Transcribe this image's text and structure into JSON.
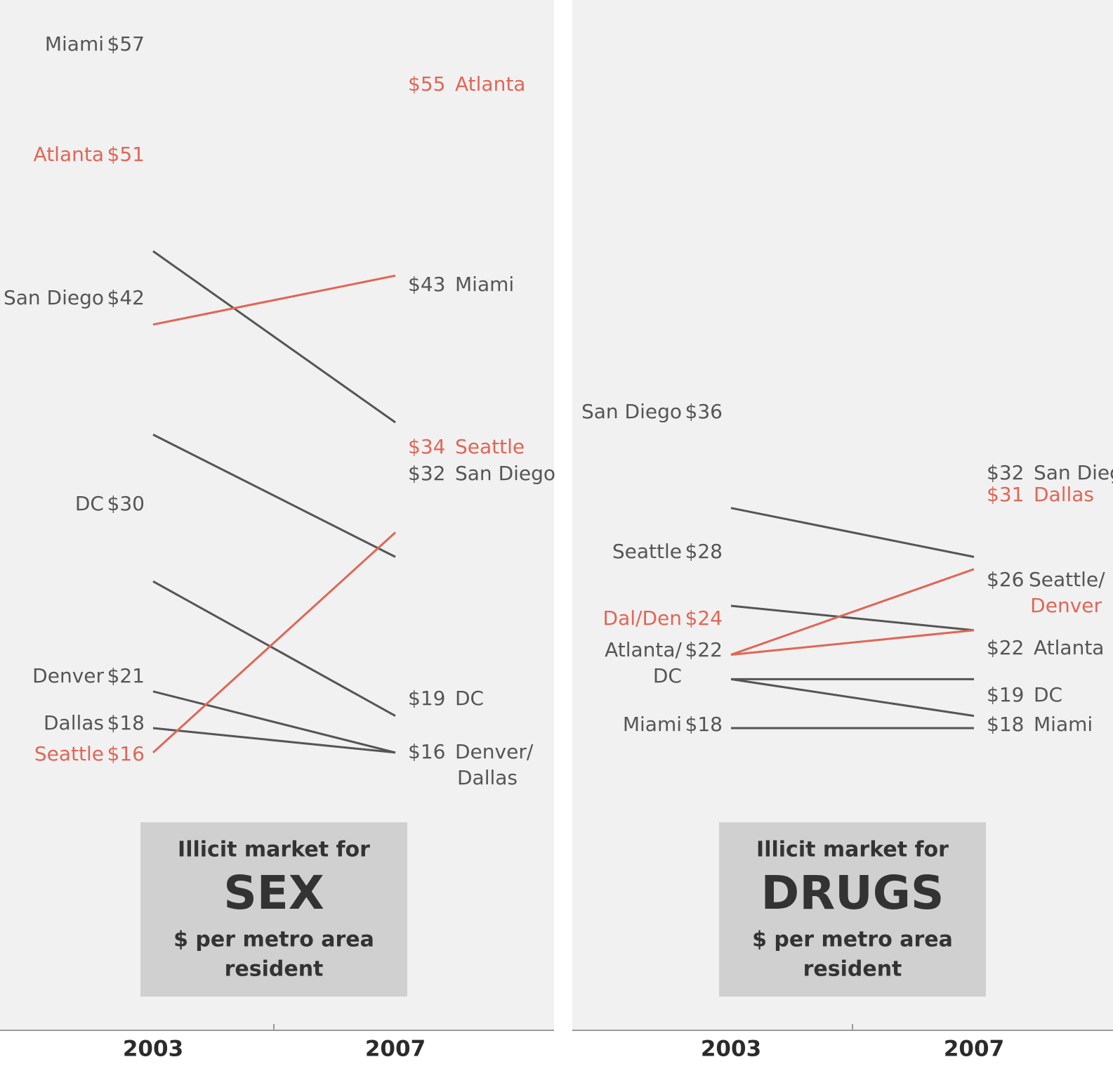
{
  "colors": {
    "panel_background": "#f1f1f1",
    "neutral": "#555555",
    "highlight": "#e06656",
    "box_background": "#d0d0d0",
    "box_text": "#333333",
    "axis": "#9a9a9a"
  },
  "chart_data": [
    {
      "type": "line",
      "variant": "slopegraph",
      "x": [
        "2003",
        "2007"
      ],
      "unit": "$ per metro area resident",
      "title_box": {
        "line1": "Illicit market for",
        "big": "SEX",
        "line2": "$ per metro area",
        "line3": "resident"
      },
      "ylim": [
        13,
        59
      ],
      "series": [
        {
          "name": "Miami",
          "values": [
            57,
            43
          ],
          "highlight": false
        },
        {
          "name": "Atlanta",
          "values": [
            51,
            55
          ],
          "highlight": true
        },
        {
          "name": "San Diego",
          "values": [
            42,
            32
          ],
          "highlight": false
        },
        {
          "name": "DC",
          "values": [
            30,
            19
          ],
          "highlight": false
        },
        {
          "name": "Denver",
          "values": [
            21,
            16
          ],
          "highlight": false
        },
        {
          "name": "Dallas",
          "values": [
            18,
            16
          ],
          "highlight": false
        },
        {
          "name": "Seattle",
          "values": [
            16,
            34
          ],
          "highlight": true
        }
      ],
      "left_labels": [
        {
          "name": "Miami",
          "value": "$57",
          "highlight": false
        },
        {
          "name": "Atlanta",
          "value": "$51",
          "highlight": true
        },
        {
          "name": "San Diego",
          "value": "$42",
          "highlight": false
        },
        {
          "name": "DC",
          "value": "$30",
          "highlight": false
        },
        {
          "name": "Denver",
          "value": "$21",
          "highlight": false
        },
        {
          "name": "Dallas",
          "value": "$18",
          "highlight": false
        },
        {
          "name": "Seattle",
          "value": "$16",
          "highlight": true
        }
      ],
      "right_labels": [
        {
          "value": "$55",
          "name": "Atlanta",
          "name_line2": "",
          "highlight": true
        },
        {
          "value": "$43",
          "name": "Miami",
          "name_line2": "",
          "highlight": false
        },
        {
          "value": "$34",
          "name": "Seattle",
          "name_line2": "",
          "highlight": true
        },
        {
          "value": "$32",
          "name": "San Diego",
          "name_line2": "",
          "highlight": false
        },
        {
          "value": "$19",
          "name": "DC",
          "name_line2": "",
          "highlight": false
        },
        {
          "value": "$16",
          "name": "Denver/",
          "name_line2": "Dallas",
          "highlight": false
        }
      ]
    },
    {
      "type": "line",
      "variant": "slopegraph",
      "x": [
        "2003",
        "2007"
      ],
      "unit": "$ per metro area resident",
      "title_box": {
        "line1": "Illicit market for",
        "big": "DRUGS",
        "line2": "$ per metro area",
        "line3": "resident"
      },
      "ylim": [
        13,
        59
      ],
      "series": [
        {
          "name": "San Diego",
          "values": [
            36,
            32
          ],
          "highlight": false
        },
        {
          "name": "Seattle",
          "values": [
            28,
            26
          ],
          "highlight": false
        },
        {
          "name": "Dallas",
          "values": [
            24,
            31
          ],
          "highlight": true
        },
        {
          "name": "Denver",
          "values": [
            24,
            26
          ],
          "highlight": true
        },
        {
          "name": "Atlanta",
          "values": [
            22,
            22
          ],
          "highlight": false
        },
        {
          "name": "DC",
          "values": [
            22,
            19
          ],
          "highlight": false
        },
        {
          "name": "Miami",
          "values": [
            18,
            18
          ],
          "highlight": false
        }
      ],
      "left_labels": [
        {
          "name": "San Diego",
          "name_line2": "",
          "value": "$36",
          "highlight": false
        },
        {
          "name": "Seattle",
          "name_line2": "",
          "value": "$28",
          "highlight": false
        },
        {
          "name": "Dal/Den",
          "name_line2": "",
          "value": "$24",
          "highlight": true
        },
        {
          "name": "Atlanta/",
          "name_line2": "DC",
          "value": "$22",
          "highlight": false
        },
        {
          "name": "Miami",
          "name_line2": "",
          "value": "$18",
          "highlight": false
        }
      ],
      "right_labels": [
        {
          "value": "$32",
          "name": "San Diego",
          "name_line2": "",
          "highlight": false
        },
        {
          "value": "$31",
          "name": "Dallas",
          "name_line2": "",
          "highlight": true
        },
        {
          "value": "$26",
          "name": "Seattle/",
          "name_line2": "Denver",
          "highlight": false,
          "line2_highlight": true
        },
        {
          "value": "$22",
          "name": "Atlanta",
          "name_line2": "",
          "highlight": false
        },
        {
          "value": "$19",
          "name": "DC",
          "name_line2": "",
          "highlight": false
        },
        {
          "value": "$18",
          "name": "Miami",
          "name_line2": "",
          "highlight": false
        }
      ]
    }
  ]
}
